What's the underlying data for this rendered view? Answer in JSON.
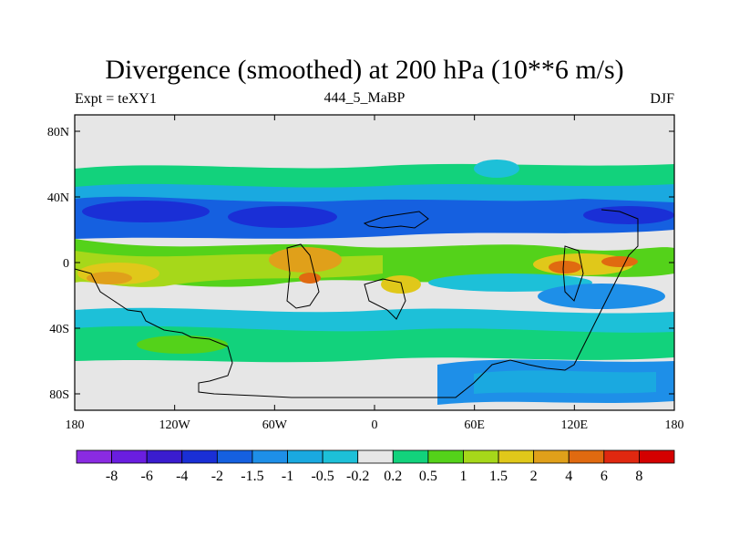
{
  "title": "Divergence (smoothed) at 200 hPa (10**6 m/s)",
  "left_label": "Expt = teXY1",
  "center_label": "444_5_MaBP",
  "right_label": "DJF",
  "chart_data": {
    "type": "heatmap",
    "title": "Divergence (smoothed) at 200 hPa (10**6 m/s)",
    "x_ticks": [
      "180",
      "120W",
      "60W",
      "0",
      "60E",
      "120E",
      "180"
    ],
    "y_ticks": [
      "80N",
      "40N",
      "0",
      "40S",
      "80S"
    ],
    "x_range": [
      -180,
      180
    ],
    "y_range": [
      -90,
      90
    ],
    "colorbar": {
      "labels": [
        "-8",
        "-6",
        "-4",
        "-2",
        "-1.5",
        "-1",
        "-0.5",
        "-0.2",
        "0.2",
        "0.5",
        "1",
        "1.5",
        "2",
        "4",
        "6",
        "8"
      ],
      "colors": [
        "#8a2be2",
        "#6a1ee0",
        "#3a1ccf",
        "#1a2fd6",
        "#1560e0",
        "#1e8fe8",
        "#1aa9e0",
        "#1dc0d8",
        "#e6e6e6",
        "#12d27c",
        "#54d21a",
        "#a6d81a",
        "#e0c81a",
        "#e0a01a",
        "#e06a10",
        "#e02810",
        "#d40000"
      ]
    },
    "grid": false
  }
}
